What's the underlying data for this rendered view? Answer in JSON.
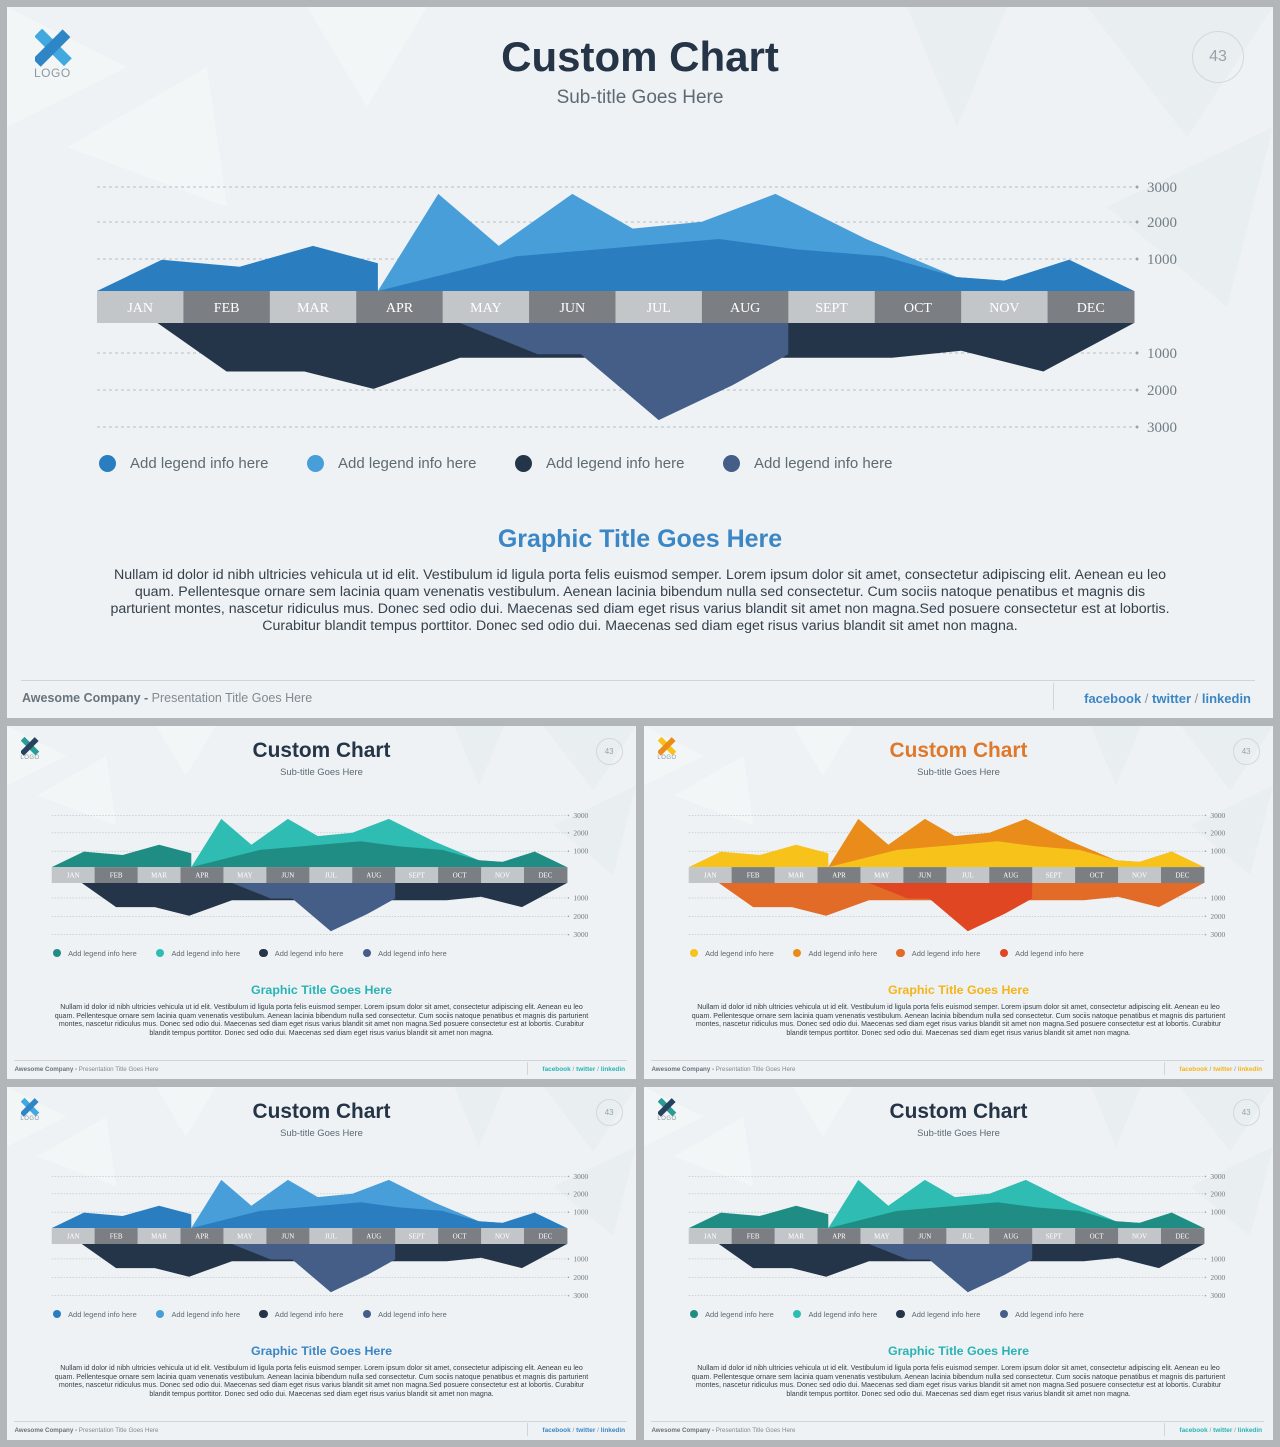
{
  "logo_text": "LOGO",
  "page_number": "43",
  "title": "Custom Chart",
  "subtitle": "Sub-title Goes Here",
  "graphic_title": "Graphic Title Goes Here",
  "body_text": "Nullam id dolor id nibh ultricies vehicula ut id elit. Vestibulum id ligula porta felis euismod semper. Lorem ipsum dolor sit amet, consectetur adipiscing elit. Aenean eu leo quam. Pellentesque ornare sem lacinia quam venenatis vestibulum. Aenean lacinia bibendum nulla sed consectetur. Cum sociis natoque penatibus et magnis dis parturient montes, nascetur ridiculus mus. Donec sed odio dui. Maecenas sed diam eget risus varius blandit sit amet non magna.Sed posuere consectetur est at lobortis. Curabitur blandit tempus porttitor. Donec sed odio dui. Maecenas sed diam eget risus varius blandit sit amet non magna.",
  "footer": {
    "company": "Awesome Company -",
    "presentation": " Presentation Title Goes Here",
    "links": [
      "facebook",
      "twitter",
      "linkedin"
    ],
    "separator": " / "
  },
  "legend_label": "Add legend info here",
  "chart_data": {
    "type": "area",
    "categories": [
      "JAN",
      "FEB",
      "MAR",
      "APR",
      "MAY",
      "JUN",
      "JUL",
      "AUG",
      "SEPT",
      "OCT",
      "NOV",
      "DEC"
    ],
    "y_ticks_up": [
      "3000",
      "2000",
      "1000"
    ],
    "y_ticks_down": [
      "1000",
      "2000",
      "3000"
    ],
    "ylim": [
      -3000,
      3000
    ],
    "legend_placement": "bottom",
    "grid": true,
    "series": [
      {
        "direction": "up",
        "x": [
          0,
          0.75,
          1.65,
          2.5,
          3.25
        ],
        "values": [
          0,
          900,
          700,
          1300,
          800
        ]
      },
      {
        "direction": "up",
        "x": [
          3.25,
          3.95,
          4.65,
          5.5,
          6.2,
          7.0,
          7.85,
          8.9,
          9.95,
          10.5,
          11.25,
          12.0
        ],
        "values": [
          0,
          2800,
          1300,
          2800,
          1800,
          2000,
          2800,
          1500,
          400,
          300,
          900,
          0
        ]
      },
      {
        "direction": "up",
        "x": [
          3.25,
          4.85,
          7.2,
          8.1,
          9.1,
          9.95,
          10.5,
          11.25,
          12.0
        ],
        "values": [
          0,
          1000,
          1500,
          1200,
          1000,
          400,
          300,
          900,
          0
        ]
      },
      {
        "direction": "down",
        "x": [
          0.7,
          1.5,
          2.4,
          3.2,
          4.2,
          5.1,
          5.6,
          7.0,
          8.0,
          9.2,
          10.0,
          10.95,
          12.0
        ],
        "values": [
          0,
          1400,
          1400,
          1900,
          1000,
          1000,
          1000,
          1000,
          1000,
          1000,
          800,
          1400,
          0
        ]
      },
      {
        "direction": "down",
        "x": [
          4.2,
          5.1,
          5.6,
          6.5,
          7.35,
          8.0
        ],
        "values": [
          0,
          900,
          900,
          2800,
          1800,
          900
        ]
      }
    ]
  },
  "variants": [
    {
      "palette": [
        "#2a7ec0",
        "#489ed9",
        "#253549",
        "#455e87"
      ],
      "title_color": "#253447",
      "accent": "#3b86c4",
      "logo": [
        "#41a8e0",
        "#2f86c6"
      ]
    },
    {
      "palette": [
        "#208d85",
        "#2fbdb3",
        "#253549",
        "#455e87"
      ],
      "title_color": "#253447",
      "accent": "#2ab3b4",
      "logo": [
        "#2a9c95",
        "#27425e"
      ]
    },
    {
      "palette": [
        "#f7c21a",
        "#ea8c1a",
        "#e36b28",
        "#df4621"
      ],
      "title_color": "#e0782a",
      "accent": "#f5b419",
      "logo": [
        "#f7c21a",
        "#ea8c1a"
      ]
    },
    {
      "palette": [
        "#2a7ec0",
        "#489ed9",
        "#253549",
        "#455e87"
      ],
      "title_color": "#253447",
      "accent": "#3b86c4",
      "logo": [
        "#41a8e0",
        "#2f86c6"
      ]
    },
    {
      "palette": [
        "#208d85",
        "#2fbdb3",
        "#253549",
        "#455e87"
      ],
      "title_color": "#253447",
      "accent": "#2ab3b4",
      "logo": [
        "#2a9c95",
        "#27425e"
      ]
    }
  ]
}
